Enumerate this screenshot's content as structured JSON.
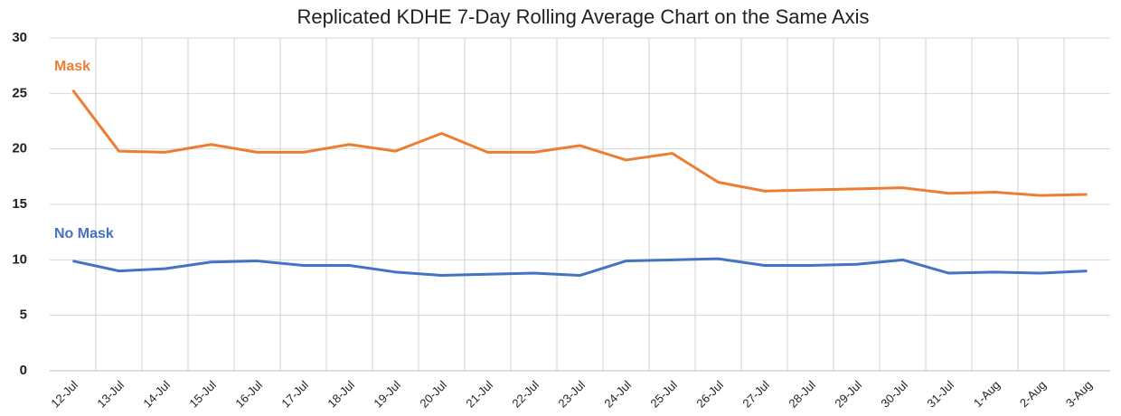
{
  "chart_data": {
    "type": "line",
    "title": "Replicated KDHE 7-Day Rolling Average Chart on the Same Axis",
    "categories": [
      "12-Jul",
      "13-Jul",
      "14-Jul",
      "15-Jul",
      "16-Jul",
      "17-Jul",
      "18-Jul",
      "19-Jul",
      "20-Jul",
      "21-Jul",
      "22-Jul",
      "23-Jul",
      "24-Jul",
      "25-Jul",
      "26-Jul",
      "27-Jul",
      "28-Jul",
      "29-Jul",
      "30-Jul",
      "31-Jul",
      "1-Aug",
      "2-Aug",
      "3-Aug"
    ],
    "series": [
      {
        "name": "Mask",
        "color": "#ed7d31",
        "values": [
          25.3,
          19.8,
          19.7,
          20.4,
          19.7,
          19.7,
          20.4,
          19.8,
          21.4,
          19.7,
          19.7,
          20.3,
          19.0,
          19.6,
          17.0,
          16.2,
          16.3,
          16.4,
          16.5,
          16.0,
          16.1,
          15.8,
          15.9
        ]
      },
      {
        "name": "No Mask",
        "color": "#4472c4",
        "values": [
          9.9,
          9.0,
          9.2,
          9.8,
          9.9,
          9.5,
          9.5,
          8.9,
          8.6,
          8.7,
          8.8,
          8.6,
          9.9,
          10.0,
          10.1,
          9.5,
          9.5,
          9.6,
          10.0,
          8.8,
          8.9,
          8.8,
          9.0
        ]
      }
    ],
    "ylim": [
      0,
      30
    ],
    "yticks": [
      0,
      5,
      10,
      15,
      20,
      25,
      30
    ],
    "grid": true
  }
}
